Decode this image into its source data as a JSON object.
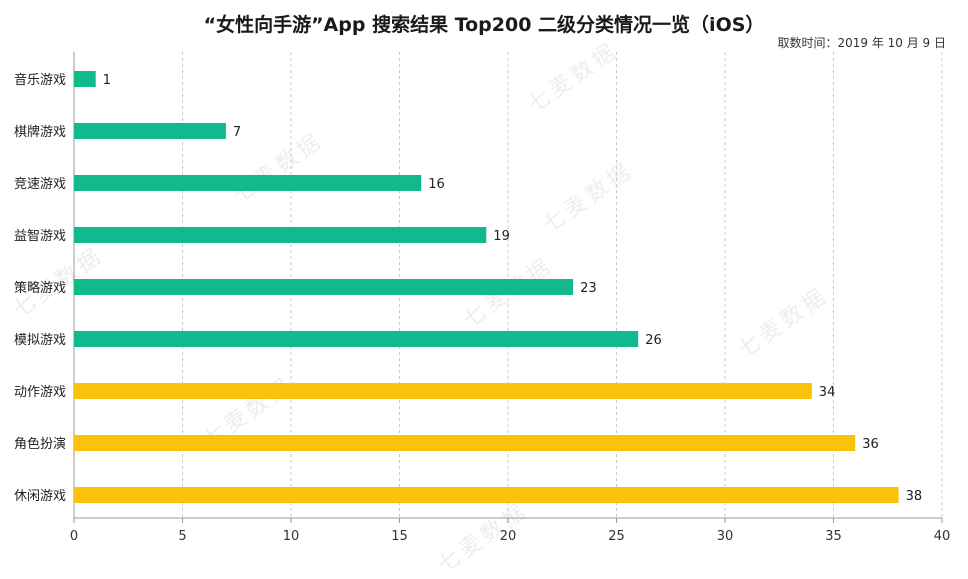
{
  "title": "“女性向手游”App 搜索结果 Top200 二级分类情况一览（iOS）",
  "date_note": "取数时间：2019 年 10 月 9 日",
  "watermark": "七麦数据",
  "colors": {
    "green": "#12b98c",
    "yellow": "#fbc20b",
    "grid": "#c8c8c8",
    "axis": "#999999"
  },
  "chart_data": {
    "type": "bar",
    "orientation": "horizontal",
    "categories": [
      "音乐游戏",
      "棋牌游戏",
      "竞速游戏",
      "益智游戏",
      "策略游戏",
      "模拟游戏",
      "动作游戏",
      "角色扮演",
      "休闲游戏"
    ],
    "values": [
      1,
      7,
      16,
      19,
      23,
      26,
      34,
      36,
      38
    ],
    "highlight_from_index": 6,
    "xlim": [
      0,
      40
    ],
    "xticks": [
      0,
      5,
      10,
      15,
      20,
      25,
      30,
      35,
      40
    ],
    "grid": true,
    "xlabel": "",
    "ylabel": ""
  }
}
